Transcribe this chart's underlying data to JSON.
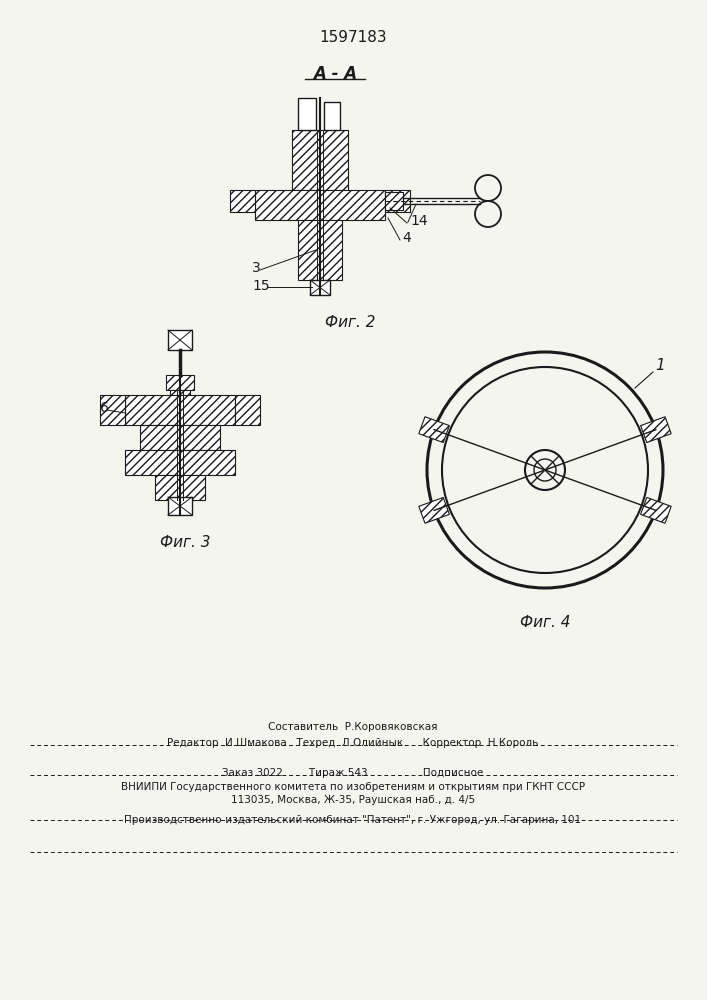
{
  "patent_number": "1597183",
  "background_color": "#f5f5f0",
  "line_color": "#1a1a1a",
  "fig2_label": "Фиг. 2",
  "fig3_label": "Фиг. 3",
  "fig4_label": "Фиг. 4",
  "section_label": "A - A",
  "footer_lines": [
    "Составитель  Р.Коровяковская",
    "Редактор  И.Шмакова   Техред  Л.Олийнык      Корректор  Н.Король",
    "Заказ 3022        Тираж 543                 Подписное",
    "ВНИИПИ Государственного комитета по изобретениям и открытиям при ГКНТ СССР",
    "113035, Москва, Ж-35, Раушская наб., д. 4/5",
    "Производственно-издательский комбинат \"Патент\", г. Ужгород, ул. Гагарина, 101"
  ]
}
